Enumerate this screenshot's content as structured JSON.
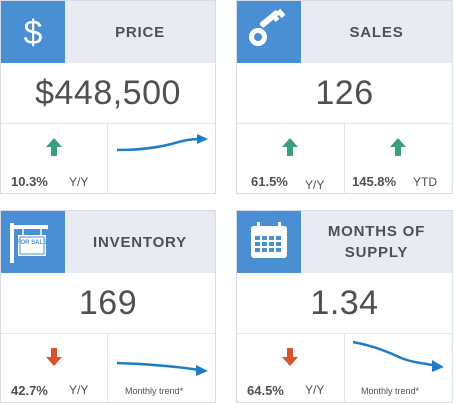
{
  "colors": {
    "header_bg": "#e8ebf1",
    "icon_bg": "#4a8fd4",
    "text": "#4d5055",
    "up_arrow": "#3aa079",
    "down_arrow": "#d9532b",
    "trend_line": "#1e7cc3"
  },
  "cards": {
    "price": {
      "icon": "dollar-icon",
      "icon_glyph": "$",
      "title": "PRICE",
      "value": "$448,500",
      "change": "10.3%",
      "change_direction": "up",
      "change_unit": "Y/Y",
      "trend_direction": "up"
    },
    "sales": {
      "icon": "house-key-icon",
      "title": "SALES",
      "value": "126",
      "change": "61.5%",
      "change_direction": "up",
      "change_unit": "Y/Y",
      "ytd_change": "145.8%",
      "ytd_direction": "up",
      "ytd_unit": "YTD"
    },
    "inventory": {
      "icon": "for-sale-sign-icon",
      "icon_sign_text": "FOR SALE",
      "title": "INVENTORY",
      "value": "169",
      "change": "42.7%",
      "change_direction": "down",
      "change_unit": "Y/Y",
      "trend_label": "Monthly trend*",
      "trend_direction": "down"
    },
    "months_of_supply": {
      "icon": "calendar-icon",
      "title_line1": "MONTHS OF",
      "title_line2": "SUPPLY",
      "value": "1.34",
      "change": "64.5%",
      "change_direction": "down",
      "change_unit": "Y/Y",
      "trend_label": "Monthly trend*",
      "trend_direction": "down"
    }
  }
}
